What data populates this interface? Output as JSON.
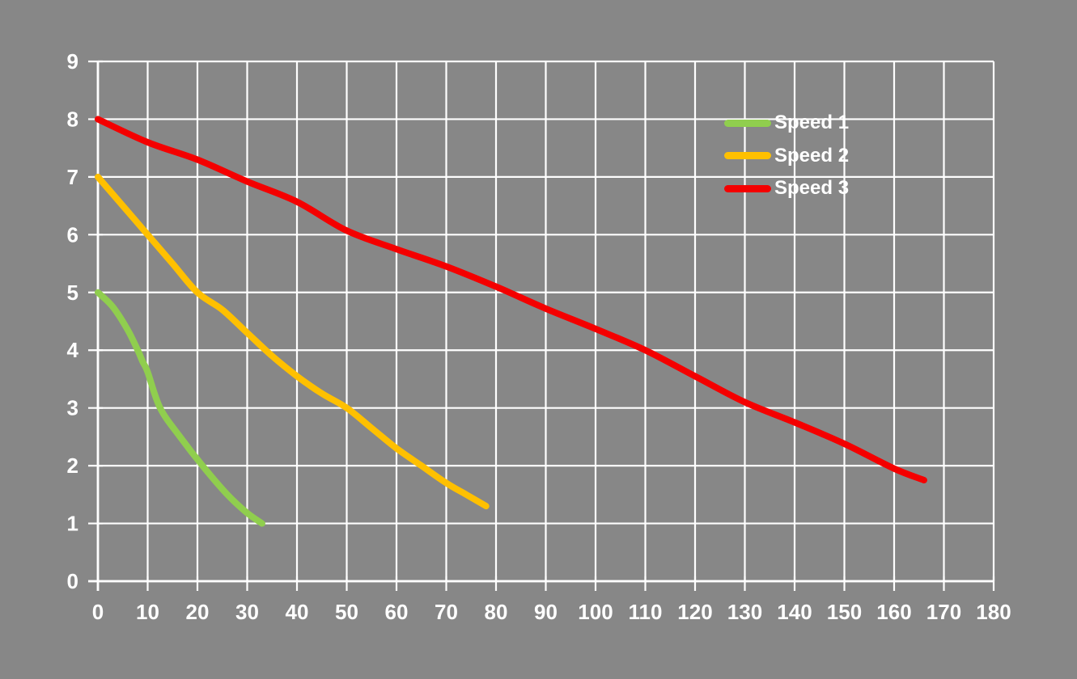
{
  "chart_data": {
    "type": "line",
    "title": "",
    "xlabel": "",
    "ylabel": "",
    "xlim": [
      0,
      180
    ],
    "ylim": [
      0,
      9
    ],
    "x_ticks": [
      0,
      10,
      20,
      30,
      40,
      50,
      60,
      70,
      80,
      90,
      100,
      110,
      120,
      130,
      140,
      150,
      160,
      170,
      180
    ],
    "y_ticks": [
      0,
      1,
      2,
      3,
      4,
      5,
      6,
      7,
      8,
      9
    ],
    "grid": true,
    "legend_position": "inside-top-right",
    "colors": {
      "background": "#878787",
      "grid": "#ffffff",
      "axis": "#ffffff",
      "text": "#ffffff"
    },
    "series": [
      {
        "name": "Speed 1",
        "color": "#90CE4E",
        "points": [
          [
            0,
            5.0
          ],
          [
            3,
            4.75
          ],
          [
            6,
            4.35
          ],
          [
            8,
            4.0
          ],
          [
            9,
            3.8
          ],
          [
            10,
            3.62
          ],
          [
            12.5,
            3.0
          ],
          [
            16.5,
            2.5
          ],
          [
            21,
            2.0
          ],
          [
            26,
            1.5
          ],
          [
            30,
            1.18
          ],
          [
            33,
            1.0
          ]
        ]
      },
      {
        "name": "Speed 2",
        "color": "#FFC000",
        "points": [
          [
            0,
            7.0
          ],
          [
            5,
            6.5
          ],
          [
            10,
            6.0
          ],
          [
            15,
            5.5
          ],
          [
            20,
            5.0
          ],
          [
            25,
            4.7
          ],
          [
            30,
            4.3
          ],
          [
            35,
            3.9
          ],
          [
            40,
            3.55
          ],
          [
            45,
            3.25
          ],
          [
            50,
            3.0
          ],
          [
            55,
            2.65
          ],
          [
            60,
            2.3
          ],
          [
            65,
            2.0
          ],
          [
            70,
            1.7
          ],
          [
            74,
            1.5
          ],
          [
            78,
            1.3
          ]
        ]
      },
      {
        "name": "Speed 3",
        "color": "#F40000",
        "points": [
          [
            0,
            8.0
          ],
          [
            10,
            7.6
          ],
          [
            20,
            7.3
          ],
          [
            30,
            6.92
          ],
          [
            40,
            6.57
          ],
          [
            50,
            6.07
          ],
          [
            60,
            5.75
          ],
          [
            70,
            5.45
          ],
          [
            80,
            5.1
          ],
          [
            90,
            4.72
          ],
          [
            100,
            4.37
          ],
          [
            110,
            4.0
          ],
          [
            120,
            3.55
          ],
          [
            130,
            3.1
          ],
          [
            140,
            2.75
          ],
          [
            150,
            2.38
          ],
          [
            160,
            1.95
          ],
          [
            166,
            1.75
          ]
        ]
      }
    ]
  }
}
